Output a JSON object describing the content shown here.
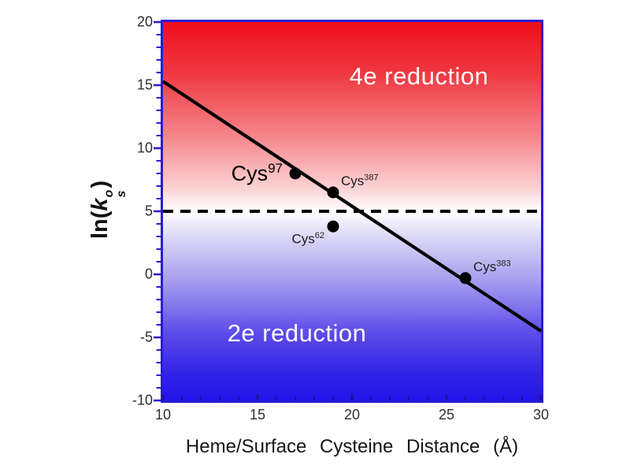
{
  "chart_data": {
    "type": "scatter",
    "title": "",
    "xlabel": "Heme/Surface Cysteine Distance (Å)",
    "ylabel": "ln(k_s^o)",
    "ylabel_parts": {
      "prefix": "ln(",
      "symbol": "k",
      "sub": "s",
      "sup": "o",
      "suffix": ")"
    },
    "xlim": [
      10,
      30
    ],
    "ylim": [
      -10,
      20
    ],
    "x_ticks": [
      10,
      15,
      20,
      25,
      30
    ],
    "y_ticks": [
      20,
      15,
      10,
      5,
      0,
      -5,
      -10
    ],
    "minor_tick_step": 1,
    "points": [
      {
        "name": "Cys",
        "sup": "97",
        "x": 17,
        "y": 8,
        "label_side": "left",
        "large": true
      },
      {
        "name": "Cys",
        "sup": "387",
        "x": 19,
        "y": 6.5,
        "label_side": "upper-right",
        "large": false
      },
      {
        "name": "Cys",
        "sup": "62",
        "x": 19,
        "y": 3.8,
        "label_side": "lower-left",
        "large": false
      },
      {
        "name": "Cys",
        "sup": "383",
        "x": 26,
        "y": -0.3,
        "label_side": "upper-right",
        "large": false
      }
    ],
    "fit_line": {
      "x1": 10,
      "y1": 15.3,
      "x2": 30,
      "y2": -4.5,
      "style": "solid",
      "color": "#000000"
    },
    "threshold_line": {
      "y": 5,
      "x1": 10,
      "x2": 30,
      "style": "dashed",
      "color": "#000000"
    },
    "regions": [
      {
        "label": "4e reduction",
        "text_color": "#ffffff",
        "position": "upper"
      },
      {
        "label": "2e reduction",
        "text_color": "#ffffff",
        "position": "lower"
      }
    ],
    "colors": {
      "axis": "#2b1bd5",
      "point": "#000000",
      "tick_label": "#2f2f2f",
      "gradient_top": "#ee0d1c",
      "gradient_middle": "#ffffff",
      "gradient_bottom": "#2315e9"
    },
    "gradient_stops": [
      [
        "#ee0d1c",
        "0%"
      ],
      [
        "#ef3a43",
        "14%"
      ],
      [
        "#f4858a",
        "30%"
      ],
      [
        "#fbd3d4",
        "44%"
      ],
      [
        "#ffffff",
        "50%"
      ],
      [
        "#dfdcf7",
        "56%"
      ],
      [
        "#a89fef",
        "68%"
      ],
      [
        "#5d4de9",
        "82%"
      ],
      [
        "#3222e6",
        "93%"
      ],
      [
        "#2315e9",
        "100%"
      ]
    ],
    "legend": {
      "visible": false
    }
  }
}
